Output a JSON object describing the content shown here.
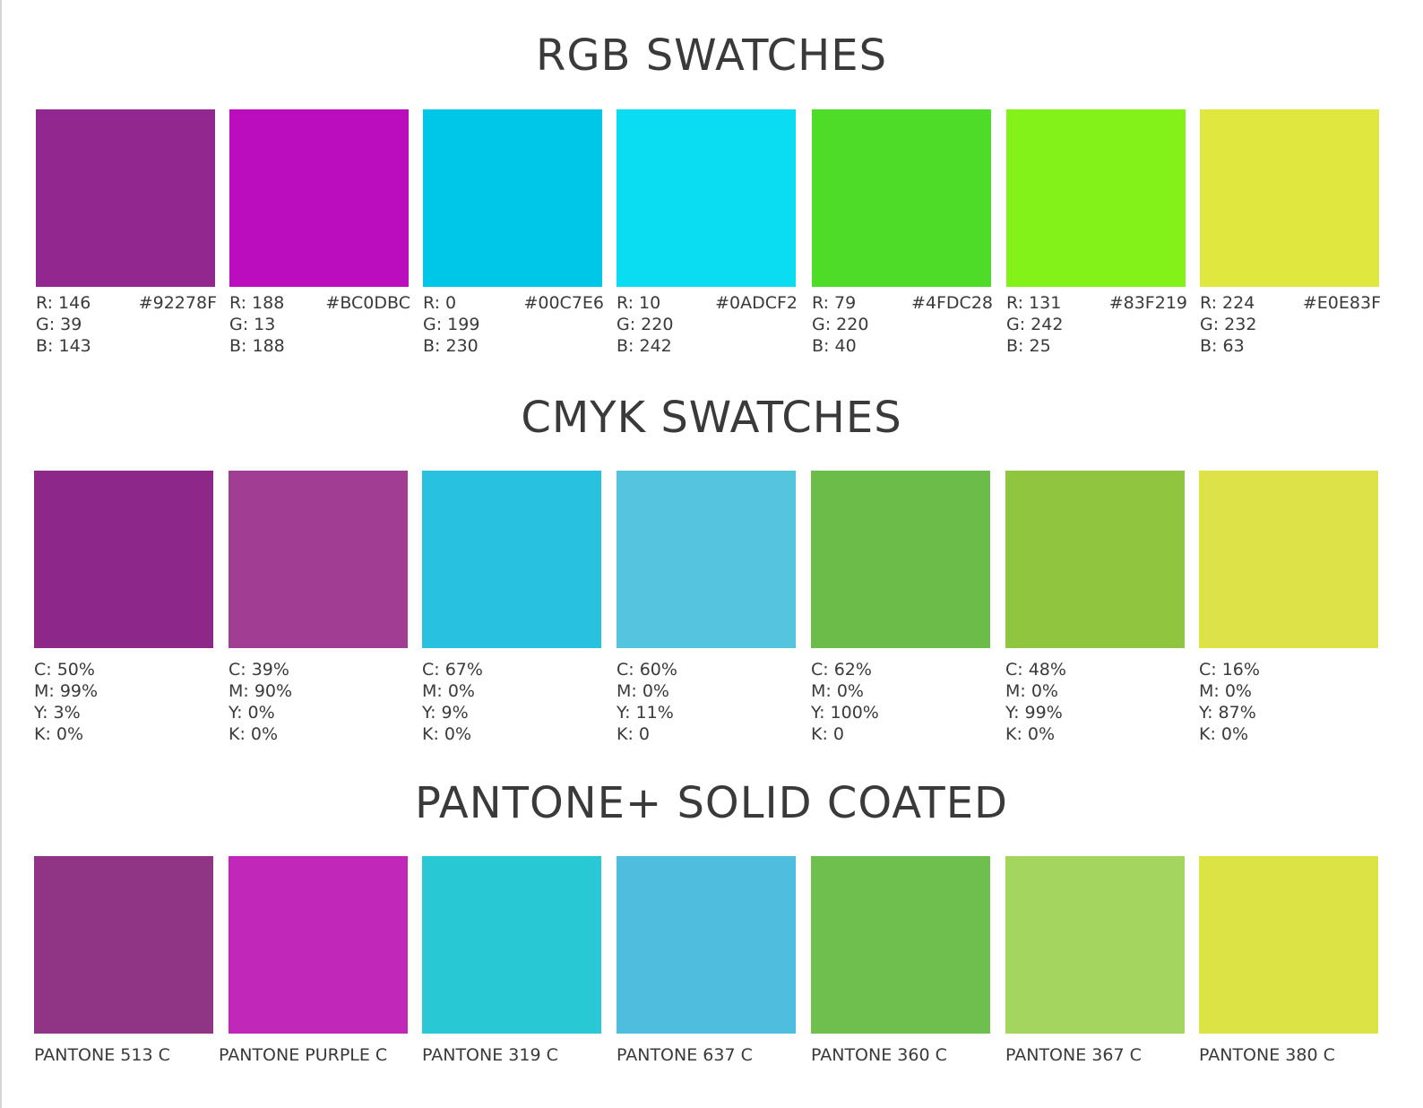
{
  "sections": {
    "rgb": {
      "title": "RGB SWATCHES",
      "swatches": [
        {
          "color": "#92278F",
          "r": "R: 146",
          "g": "G: 39",
          "b": "B: 143",
          "hex": "#92278F"
        },
        {
          "color": "#BC0DBC",
          "r": "R: 188",
          "g": "G: 13",
          "b": "B: 188",
          "hex": "#BC0DBC"
        },
        {
          "color": "#00C7E6",
          "r": "R: 0",
          "g": "G: 199",
          "b": "B: 230",
          "hex": "#00C7E6"
        },
        {
          "color": "#0ADCF2",
          "r": "R: 10",
          "g": "G: 220",
          "b": "B: 242",
          "hex": "#0ADCF2"
        },
        {
          "color": "#4FDC28",
          "r": "R: 79",
          "g": "G: 220",
          "b": "B: 40",
          "hex": "#4FDC28"
        },
        {
          "color": "#83F219",
          "r": "R: 131",
          "g": "G: 242",
          "b": "B: 25",
          "hex": "#83F219"
        },
        {
          "color": "#E0E83F",
          "r": "R: 224",
          "g": "G: 232",
          "b": "B: 63",
          "hex": "#E0E83F"
        }
      ]
    },
    "cmyk": {
      "title": "CMYK SWATCHES",
      "swatches": [
        {
          "color": "#8E2888",
          "c": "C: 50%",
          "m": "M: 99%",
          "y": "Y: 3%",
          "k": "K: 0%"
        },
        {
          "color": "#A13E93",
          "c": "C: 39%",
          "m": "M: 90%",
          "y": "Y: 0%",
          "k": "K: 0%"
        },
        {
          "color": "#28C1E0",
          "c": "C: 67%",
          "m": "M: 0%",
          "y": "Y: 9%",
          "k": "K: 0%"
        },
        {
          "color": "#53C5DD",
          "c": "C: 60%",
          "m": "M: 0%",
          "y": "Y: 11%",
          "k": "K: 0"
        },
        {
          "color": "#6CBC4A",
          "c": "C: 62%",
          "m": "M: 0%",
          "y": "Y: 100%",
          "k": "K: 0"
        },
        {
          "color": "#90C540",
          "c": "C: 48%",
          "m": "M: 0%",
          "y": "Y: 99%",
          "k": "K: 0%"
        },
        {
          "color": "#DDE346",
          "c": "C: 16%",
          "m": "M: 0%",
          "y": "Y: 87%",
          "k": "K: 0%"
        }
      ]
    },
    "pantone": {
      "title": "PANTONE+ SOLID COATED",
      "swatches": [
        {
          "color": "#903586",
          "name": "PANTONE 513 C"
        },
        {
          "color": "#C127B9",
          "name": "PANTONE PURPLE C"
        },
        {
          "color": "#28C9D4",
          "name": "PANTONE 319 C"
        },
        {
          "color": "#4DBEDD",
          "name": "PANTONE 637 C"
        },
        {
          "color": "#6FBF4F",
          "name": "PANTONE 360 C"
        },
        {
          "color": "#A3D55F",
          "name": "PANTONE 367 C"
        },
        {
          "color": "#DCE344",
          "name": "PANTONE 380 C"
        }
      ]
    }
  }
}
